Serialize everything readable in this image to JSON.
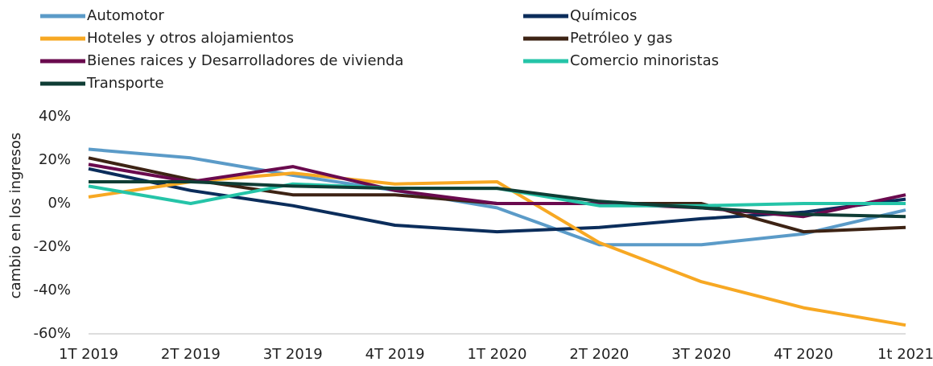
{
  "chart_data": {
    "type": "line",
    "y_label": "cambio en los ingresos",
    "categories": [
      "1T 2019",
      "2T 2019",
      "3T 2019",
      "4T 2019",
      "1T 2020",
      "2T 2020",
      "3T 2020",
      "4T 2020",
      "1t 2021"
    ],
    "series": [
      {
        "name": "Automotor",
        "color": "#5b9bc8",
        "values": [
          25,
          21,
          13,
          6,
          -2,
          -19,
          -19,
          -14,
          -3
        ]
      },
      {
        "name": "Químicos",
        "color": "#0b2d5b",
        "values": [
          16,
          6,
          -1,
          -10,
          -13,
          -11,
          -7,
          -4,
          2
        ]
      },
      {
        "name": "Hoteles y otros alojamientos",
        "color": "#f7a823",
        "values": [
          3,
          10,
          14,
          9,
          10,
          -18,
          -36,
          -48,
          -56
        ]
      },
      {
        "name": "Petróleo y gas",
        "color": "#3d2314",
        "values": [
          21,
          11,
          4,
          4,
          0,
          0,
          0,
          -13,
          -11
        ]
      },
      {
        "name": "Bienes raices y Desarrolladores de vivienda",
        "color": "#6a0a4e",
        "values": [
          18,
          10,
          17,
          6,
          0,
          0,
          -2,
          -6,
          4
        ]
      },
      {
        "name": "Comercio minoristas",
        "color": "#25c4a8",
        "values": [
          8,
          0,
          9,
          7,
          7,
          -1,
          -1,
          0,
          0
        ]
      },
      {
        "name": "Transporte",
        "color": "#0f3d35",
        "values": [
          10,
          10,
          8,
          7,
          7,
          1,
          -2,
          -5,
          -6
        ]
      }
    ],
    "ylim": [
      -60,
      40
    ],
    "yticks": [
      {
        "value": 40,
        "label": "40%"
      },
      {
        "value": 20,
        "label": "20%"
      },
      {
        "value": 0,
        "label": "0%"
      },
      {
        "value": -20,
        "label": "-20%"
      },
      {
        "value": -40,
        "label": "-40%"
      },
      {
        "value": -60,
        "label": "-60%"
      }
    ],
    "grid": false
  }
}
